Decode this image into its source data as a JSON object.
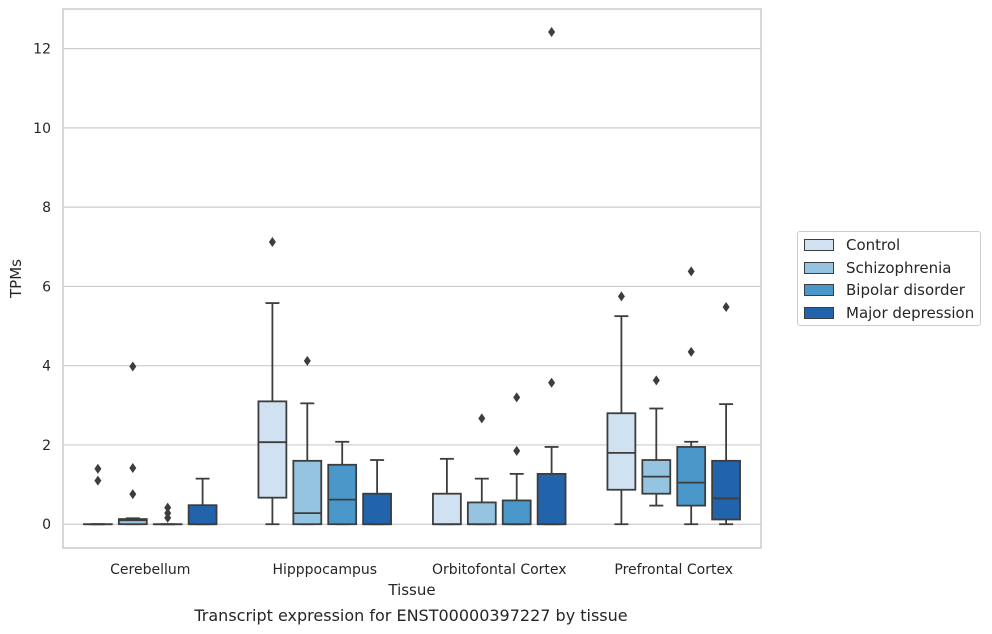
{
  "caption": "Transcript expression for ENST00000397227 by tissue",
  "chart_data": {
    "type": "box",
    "xlabel": "Tissue",
    "ylabel": "TPMs",
    "ylim": [
      -0.6,
      13.0
    ],
    "yticks": [
      0,
      2,
      4,
      6,
      8,
      10,
      12
    ],
    "ytick_labels": [
      "0",
      "2",
      "4",
      "6",
      "8",
      "10",
      "12"
    ],
    "grid": "horizontal",
    "legend_position": "right",
    "categories": [
      "Cerebellum",
      "Hipppocampus",
      "Orbitofontal Cortex",
      "Prefrontal Cortex"
    ],
    "series": [
      {
        "name": "Control",
        "color": "#d0e1f2",
        "boxes": [
          {
            "whislo": 0,
            "q1": 0,
            "med": 0,
            "q3": 0,
            "whishi": 0,
            "fliers": [
              1.4,
              1.1
            ]
          },
          {
            "whislo": 0,
            "q1": 0.67,
            "med": 2.07,
            "q3": 3.1,
            "whishi": 5.58,
            "fliers": [
              7.12
            ]
          },
          {
            "whislo": 0,
            "q1": 0,
            "med": 0,
            "q3": 0.77,
            "whishi": 1.65,
            "fliers": []
          },
          {
            "whislo": 0,
            "q1": 0.87,
            "med": 1.8,
            "q3": 2.8,
            "whishi": 5.25,
            "fliers": [
              5.75
            ]
          }
        ]
      },
      {
        "name": "Schizophrenia",
        "color": "#94c4df",
        "boxes": [
          {
            "whislo": 0,
            "q1": 0,
            "med": 0.1,
            "q3": 0.13,
            "whishi": 0.15,
            "fliers": [
              3.98,
              1.42,
              0.76
            ]
          },
          {
            "whislo": 0,
            "q1": 0,
            "med": 0.28,
            "q3": 1.6,
            "whishi": 3.05,
            "fliers": [
              4.12
            ]
          },
          {
            "whislo": 0,
            "q1": 0,
            "med": 0,
            "q3": 0.55,
            "whishi": 1.15,
            "fliers": [
              2.67
            ]
          },
          {
            "whislo": 0.47,
            "q1": 0.77,
            "med": 1.2,
            "q3": 1.62,
            "whishi": 2.92,
            "fliers": [
              3.63
            ]
          }
        ]
      },
      {
        "name": "Bipolar disorder",
        "color": "#4a98c9",
        "boxes": [
          {
            "whislo": 0,
            "q1": 0,
            "med": 0,
            "q3": 0,
            "whishi": 0,
            "fliers": [
              0.42,
              0.28,
              0.16
            ]
          },
          {
            "whislo": 0,
            "q1": 0,
            "med": 0.62,
            "q3": 1.5,
            "whishi": 2.08,
            "fliers": []
          },
          {
            "whislo": 0,
            "q1": 0,
            "med": 0,
            "q3": 0.6,
            "whishi": 1.27,
            "fliers": [
              3.2,
              1.85
            ]
          },
          {
            "whislo": 0,
            "q1": 0.47,
            "med": 1.05,
            "q3": 1.95,
            "whishi": 2.08,
            "fliers": [
              6.38,
              4.35
            ]
          }
        ]
      },
      {
        "name": "Major depression",
        "color": "#2164ab",
        "boxes": [
          {
            "whislo": 0,
            "q1": 0,
            "med": 0,
            "q3": 0.48,
            "whishi": 1.15,
            "fliers": []
          },
          {
            "whislo": 0,
            "q1": 0,
            "med": 0,
            "q3": 0.77,
            "whishi": 1.62,
            "fliers": []
          },
          {
            "whislo": 0,
            "q1": 0,
            "med": 0,
            "q3": 1.27,
            "whishi": 1.95,
            "fliers": [
              12.42,
              3.57
            ]
          },
          {
            "whislo": 0,
            "q1": 0.12,
            "med": 0.65,
            "q3": 1.6,
            "whishi": 3.03,
            "fliers": [
              5.48
            ]
          }
        ]
      }
    ]
  }
}
